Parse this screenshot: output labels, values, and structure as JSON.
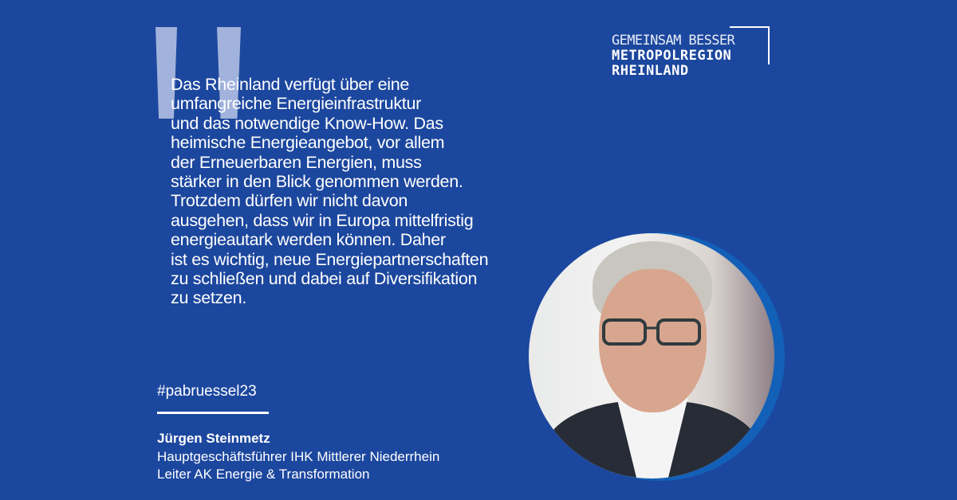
{
  "quote": {
    "lines": [
      "Das Rheinland verfügt über eine",
      "umfangreiche Energieinfrastruktur",
      "und das notwendige Know-How. Das",
      "heimische Energieangebot, vor allem",
      "der Erneuerbaren Energien, muss",
      "stärker in den Blick genommen werden.",
      "Trotzdem dürfen wir nicht davon",
      "ausgehen, dass wir in Europa mittelfristig",
      "energieautark werden können. Daher",
      "ist es wichtig, neue Energiepartnerschaften",
      "zu schließen und dabei auf Diversifikation",
      "zu setzen."
    ]
  },
  "logo": {
    "line1": "GEMEINSAM BESSER",
    "line2": "METROPOLREGION",
    "line3": "RHEINLAND"
  },
  "hashtag": "#pabruessel23",
  "person": {
    "name": "Jürgen Steinmetz",
    "role1": "Hauptgeschäftsführer IHK Mittlerer Niederrhein",
    "role2": "Leiter AK Energie & Transformation"
  },
  "colors": {
    "background": "#1c479e",
    "ring": "#1360b8",
    "text": "#ffffff"
  }
}
